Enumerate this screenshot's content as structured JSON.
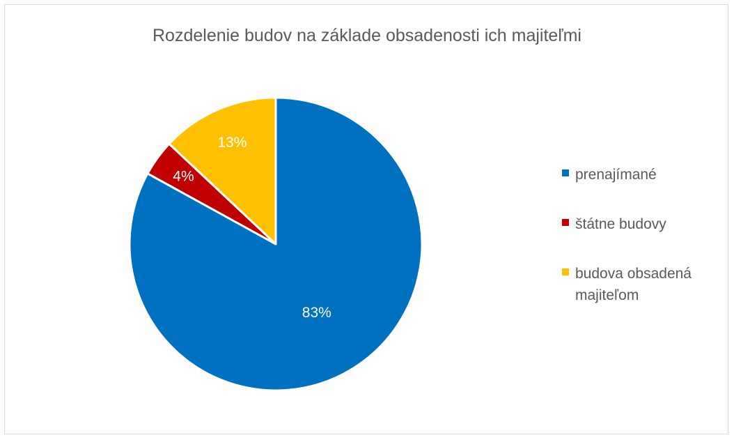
{
  "chart_data": {
    "type": "pie",
    "title": "Rozdelenie budov na základe obsadenosti ich majiteľmi",
    "slices": [
      {
        "name": "prenajímané",
        "value": 83,
        "label": "83%",
        "color": "#0070c0"
      },
      {
        "name": "štátne budovy",
        "value": 4,
        "label": "4%",
        "color": "#c00000"
      },
      {
        "name": "budova obsadená majiteľom",
        "value": 13,
        "label": "13%",
        "color": "#ffc000"
      }
    ],
    "legend_position": "right"
  }
}
